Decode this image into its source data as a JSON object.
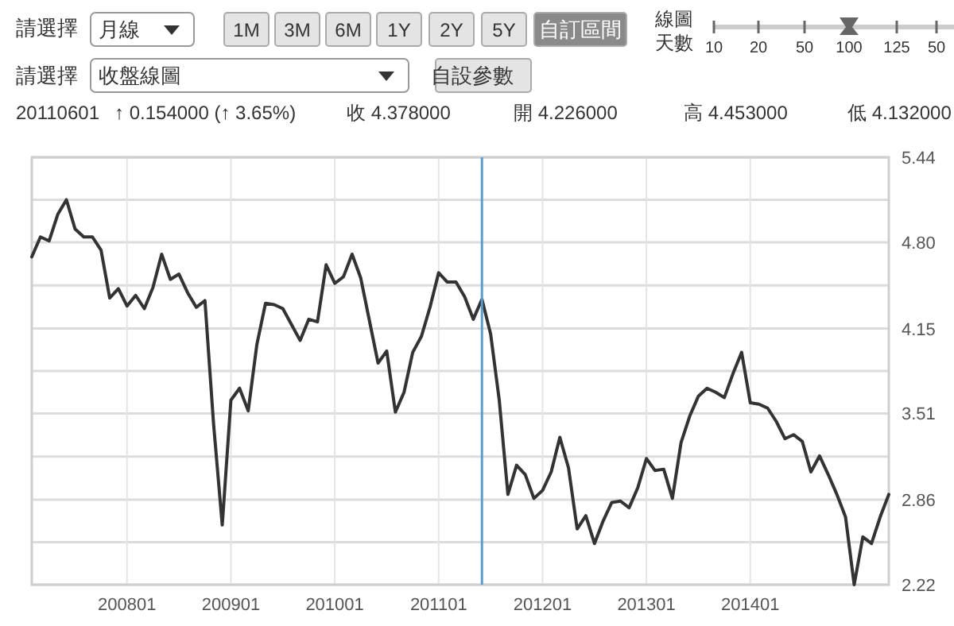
{
  "chart_data": {
    "type": "line",
    "annotations": [
      "請選擇",
      "月線",
      "1M",
      "3M",
      "6M",
      "1Y",
      "2Y",
      "5Y",
      "自訂區間",
      "線圖",
      "天數",
      "10",
      "20",
      "50",
      "100",
      "125",
      "50",
      "請選擇",
      "收盤線圖",
      "自設參數",
      "20110601",
      "↑ 0.154000 (↑ 3.65%)",
      "收 4.378000",
      "開 4.226000",
      "高 4.453000",
      "低 4.132000"
    ],
    "x": [
      "2007-02",
      "2007-03",
      "2007-04",
      "2007-05",
      "2007-06",
      "2007-07",
      "2007-08",
      "2007-09",
      "2007-10",
      "2007-11",
      "2007-12",
      "2008-01",
      "2008-02",
      "2008-03",
      "2008-04",
      "2008-05",
      "2008-06",
      "2008-07",
      "2008-08",
      "2008-09",
      "2008-10",
      "2008-11",
      "2008-12",
      "2009-01",
      "2009-02",
      "2009-03",
      "2009-04",
      "2009-05",
      "2009-06",
      "2009-07",
      "2009-08",
      "2009-09",
      "2009-10",
      "2009-11",
      "2009-12",
      "2010-01",
      "2010-02",
      "2010-03",
      "2010-04",
      "2010-05",
      "2010-06",
      "2010-07",
      "2010-08",
      "2010-09",
      "2010-10",
      "2010-11",
      "2010-12",
      "2011-01",
      "2011-02",
      "2011-03",
      "2011-04",
      "2011-05",
      "2011-06",
      "2011-07",
      "2011-08",
      "2011-09",
      "2011-10",
      "2011-11",
      "2011-12",
      "2012-01",
      "2012-02",
      "2012-03",
      "2012-04",
      "2012-05",
      "2012-06",
      "2012-07",
      "2012-08",
      "2012-09",
      "2012-10",
      "2012-11",
      "2012-12",
      "2013-01",
      "2013-02",
      "2013-03",
      "2013-04",
      "2013-05",
      "2013-06",
      "2013-07",
      "2013-08",
      "2013-09",
      "2013-10",
      "2013-11",
      "2013-12",
      "2014-01",
      "2014-02",
      "2014-03",
      "2014-04",
      "2014-05",
      "2014-06",
      "2014-07",
      "2014-08",
      "2014-09",
      "2014-10",
      "2014-11",
      "2014-12",
      "2015-01",
      "2015-02",
      "2015-03",
      "2015-04",
      "2015-05"
    ],
    "series": [
      {
        "color": "#333333",
        "values": [
          4.69,
          4.84,
          4.81,
          5.01,
          5.12,
          4.9,
          4.84,
          4.84,
          4.74,
          4.38,
          4.45,
          4.32,
          4.4,
          4.3,
          4.46,
          4.71,
          4.52,
          4.56,
          4.42,
          4.31,
          4.36,
          3.43,
          2.67,
          3.61,
          3.7,
          3.53,
          4.03,
          4.34,
          4.33,
          4.3,
          4.18,
          4.06,
          4.22,
          4.2,
          4.63,
          4.49,
          4.54,
          4.71,
          4.53,
          4.21,
          3.89,
          3.98,
          3.52,
          3.67,
          3.97,
          4.09,
          4.31,
          4.57,
          4.5,
          4.5,
          4.39,
          4.22,
          4.37,
          4.11,
          3.61,
          2.9,
          3.12,
          3.05,
          2.87,
          2.93,
          3.07,
          3.33,
          3.1,
          2.64,
          2.74,
          2.53,
          2.7,
          2.84,
          2.85,
          2.8,
          2.95,
          3.17,
          3.08,
          3.09,
          2.87,
          3.29,
          3.49,
          3.64,
          3.7,
          3.67,
          3.63,
          3.81,
          3.97,
          3.59,
          3.58,
          3.55,
          3.45,
          3.32,
          3.35,
          3.3,
          3.07,
          3.19,
          3.05,
          2.9,
          2.73,
          2.22,
          2.58,
          2.53,
          2.73,
          2.9
        ]
      }
    ],
    "xlim": [
      "2007-02",
      "2015-05"
    ],
    "xticks": [
      {
        "value": "2008-01",
        "label": "200801"
      },
      {
        "value": "2009-01",
        "label": "200901"
      },
      {
        "value": "2010-01",
        "label": "201001"
      },
      {
        "value": "2011-01",
        "label": "201101"
      },
      {
        "value": "2012-01",
        "label": "201201"
      },
      {
        "value": "2013-01",
        "label": "201301"
      },
      {
        "value": "2014-01",
        "label": "201401"
      }
    ],
    "ylim": [
      2.22,
      5.44
    ],
    "yticks": [
      {
        "value": 5.44,
        "label": "5.44"
      },
      {
        "value": 5.12,
        "label": null
      },
      {
        "value": 4.8,
        "label": "4.80"
      },
      {
        "value": 4.475,
        "label": null
      },
      {
        "value": 4.15,
        "label": "4.15"
      },
      {
        "value": 3.83,
        "label": null
      },
      {
        "value": 3.51,
        "label": "3.51"
      },
      {
        "value": 3.185,
        "label": null
      },
      {
        "value": 2.86,
        "label": "2.86"
      },
      {
        "value": 2.54,
        "label": null
      },
      {
        "value": 2.22,
        "label": "2.22"
      }
    ],
    "ref_lines": [
      {
        "axis": "x",
        "value": "2011-06",
        "label": null,
        "color": "#5a9ccc"
      }
    ],
    "grid": true,
    "marker": "none",
    "line_style": "solid"
  }
}
